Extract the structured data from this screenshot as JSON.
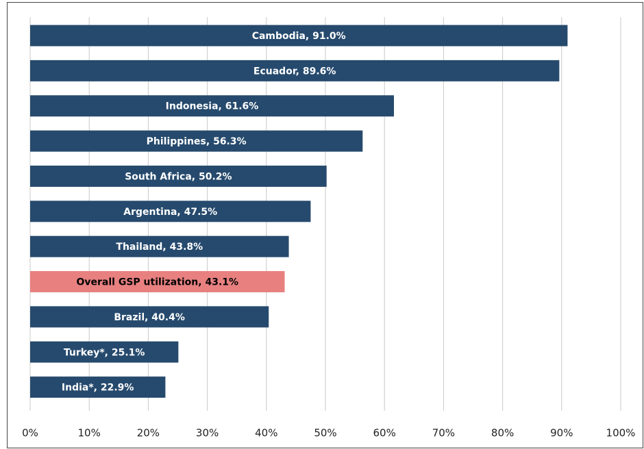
{
  "chart_data": {
    "type": "barh",
    "values": [
      91.0,
      89.6,
      61.6,
      56.3,
      50.2,
      47.5,
      43.8,
      43.1,
      40.4,
      25.1,
      22.9
    ],
    "value_labels": [
      "Cambodia, 91.0%",
      "Ecuador, 89.6%",
      "Indonesia, 61.6%",
      "Philippines, 56.3%",
      "South Africa, 50.2%",
      "Argentina, 47.5%",
      "Thailand, 43.8%",
      "Overall GSP utilization, 43.1%",
      "Brazil, 40.4%",
      "Turkey*, 25.1%",
      "India*, 22.9%"
    ],
    "colors": [
      "#264a6d",
      "#264a6d",
      "#264a6d",
      "#264a6d",
      "#264a6d",
      "#264a6d",
      "#264a6d",
      "#e88080",
      "#264a6d",
      "#264a6d",
      "#264a6d"
    ],
    "label_colors": [
      "#ffffff",
      "#ffffff",
      "#ffffff",
      "#ffffff",
      "#ffffff",
      "#ffffff",
      "#ffffff",
      "#000000",
      "#ffffff",
      "#ffffff",
      "#ffffff"
    ],
    "xlim": [
      0,
      100
    ],
    "xticks": [
      {
        "value": 0,
        "label": "0%"
      },
      {
        "value": 10,
        "label": "10%"
      },
      {
        "value": 20,
        "label": "20%"
      },
      {
        "value": 30,
        "label": "30%"
      },
      {
        "value": 40,
        "label": "40%"
      },
      {
        "value": 50,
        "label": "50%"
      },
      {
        "value": 60,
        "label": "60%"
      },
      {
        "value": 70,
        "label": "70%"
      },
      {
        "value": 80,
        "label": "80%"
      },
      {
        "value": 90,
        "label": "90%"
      },
      {
        "value": 100,
        "label": "100%"
      }
    ],
    "grid": true
  }
}
